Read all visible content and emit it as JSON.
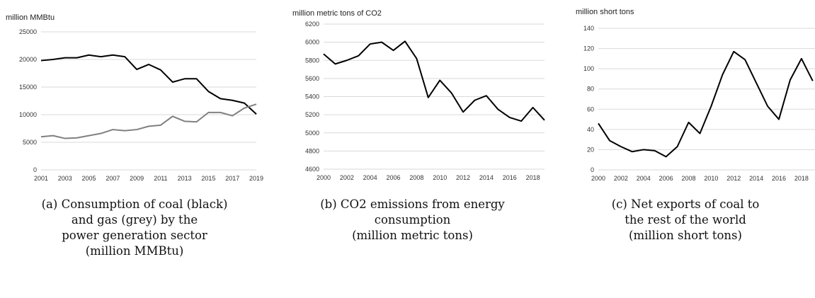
{
  "chart_data": [
    {
      "type": "line",
      "unit_label": "million MMBtu",
      "x": [
        2001,
        2002,
        2003,
        2004,
        2005,
        2006,
        2007,
        2008,
        2009,
        2010,
        2011,
        2012,
        2013,
        2014,
        2015,
        2016,
        2017,
        2018,
        2019
      ],
      "x_tick_labels": [
        "2001",
        "2003",
        "2005",
        "2007",
        "2009",
        "2011",
        "2013",
        "2015",
        "2017",
        "2019"
      ],
      "ylim": [
        0,
        25000
      ],
      "y_ticks": [
        0,
        5000,
        10000,
        15000,
        20000,
        25000
      ],
      "y_tick_labels": [
        "0",
        "5000",
        "10000",
        "15000",
        "20000",
        "25000"
      ],
      "grid": true,
      "series": [
        {
          "color": "#000000",
          "values": [
            19800,
            20000,
            20300,
            20300,
            20800,
            20500,
            20800,
            20500,
            18200,
            19100,
            18100,
            15900,
            16500,
            16500,
            14200,
            12900,
            12600,
            12100,
            10100
          ]
        },
        {
          "color": "#808080",
          "values": [
            6000,
            6200,
            5700,
            5800,
            6200,
            6600,
            7300,
            7100,
            7300,
            7900,
            8100,
            9700,
            8800,
            8700,
            10400,
            10400,
            9800,
            11200,
            11900
          ]
        }
      ],
      "caption_lines": [
        "(a) Consumption of coal (black)",
        "and gas (grey) by the",
        "power generation sector",
        "(million MMBtu)"
      ]
    },
    {
      "type": "line",
      "unit_label": "million metric tons of CO2",
      "x": [
        2000,
        2001,
        2002,
        2003,
        2004,
        2005,
        2006,
        2007,
        2008,
        2009,
        2010,
        2011,
        2012,
        2013,
        2014,
        2015,
        2016,
        2017,
        2018,
        2019
      ],
      "x_tick_labels": [
        "2000",
        "2002",
        "2004",
        "2006",
        "2008",
        "2010",
        "2012",
        "2014",
        "2016",
        "2018"
      ],
      "ylim": [
        4600,
        6200
      ],
      "y_ticks": [
        4600,
        4800,
        5000,
        5200,
        5400,
        5600,
        5800,
        6000,
        6200
      ],
      "y_tick_labels": [
        "4600",
        "4800",
        "5000",
        "5200",
        "5400",
        "5600",
        "5800",
        "6000",
        "6200"
      ],
      "grid": true,
      "series": [
        {
          "color": "#000000",
          "values": [
            5870,
            5760,
            5800,
            5850,
            5980,
            6000,
            5910,
            6010,
            5820,
            5390,
            5580,
            5440,
            5230,
            5360,
            5410,
            5260,
            5170,
            5130,
            5280,
            5140
          ]
        }
      ],
      "caption_lines": [
        "(b) CO2 emissions from energy",
        "consumption",
        "(million metric tons)"
      ]
    },
    {
      "type": "line",
      "unit_label": "million short tons",
      "x": [
        2000,
        2001,
        2002,
        2003,
        2004,
        2005,
        2006,
        2007,
        2008,
        2009,
        2010,
        2011,
        2012,
        2013,
        2014,
        2015,
        2016,
        2017,
        2018,
        2019
      ],
      "x_tick_labels": [
        "2000",
        "2002",
        "2004",
        "2006",
        "2008",
        "2010",
        "2012",
        "2014",
        "2016",
        "2018"
      ],
      "ylim": [
        0,
        140
      ],
      "y_ticks": [
        0,
        20,
        40,
        60,
        80,
        100,
        120,
        140
      ],
      "y_tick_labels": [
        "0",
        "20",
        "40",
        "60",
        "80",
        "100",
        "120",
        "140"
      ],
      "grid": true,
      "series": [
        {
          "color": "#000000",
          "values": [
            46,
            29,
            23,
            18,
            20,
            19,
            13,
            23,
            47,
            36,
            63,
            94,
            117,
            109,
            86,
            63,
            50,
            89,
            110,
            88
          ]
        }
      ],
      "caption_lines": [
        "(c) Net exports of coal to",
        "the rest of the world",
        "(million short tons)"
      ]
    }
  ]
}
